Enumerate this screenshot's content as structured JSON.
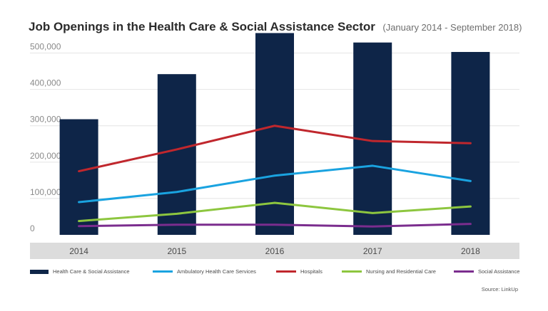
{
  "title": "Job Openings in the Health Care & Social Assistance Sector",
  "subtitle": "(January 2014 - September 2018)",
  "source": "Source: LinkUp",
  "chart_data": {
    "type": "bar",
    "categories": [
      "2014",
      "2015",
      "2016",
      "2017",
      "2018"
    ],
    "ylim": [
      0,
      550000
    ],
    "yticks": [
      {
        "value": 0,
        "label": "0"
      },
      {
        "value": 100000,
        "label": "100,000"
      },
      {
        "value": 200000,
        "label": "200,000"
      },
      {
        "value": 300000,
        "label": "300,000"
      },
      {
        "value": 400000,
        "label": "400,000"
      },
      {
        "value": 500000,
        "label": "500,000"
      }
    ],
    "grid": true,
    "legend_position": "bottom",
    "bar_series": {
      "name": "Health Care & Social Assistance",
      "color": "#0e2548",
      "values": [
        318000,
        442000,
        555000,
        529000,
        503000
      ]
    },
    "line_series": [
      {
        "name": "Ambulatory Health Care Services",
        "color": "#1aa3e0",
        "values": [
          90000,
          118000,
          163000,
          190000,
          148000
        ]
      },
      {
        "name": "Hospitals",
        "color": "#c0272d",
        "values": [
          175000,
          235000,
          300000,
          258000,
          252000
        ]
      },
      {
        "name": "Nursing and Residential Care",
        "color": "#8dc63f",
        "values": [
          38000,
          58000,
          88000,
          60000,
          78000
        ]
      },
      {
        "name": "Social Assistance",
        "color": "#7b2d8e",
        "values": [
          24000,
          28000,
          28000,
          23000,
          30000
        ]
      }
    ]
  }
}
